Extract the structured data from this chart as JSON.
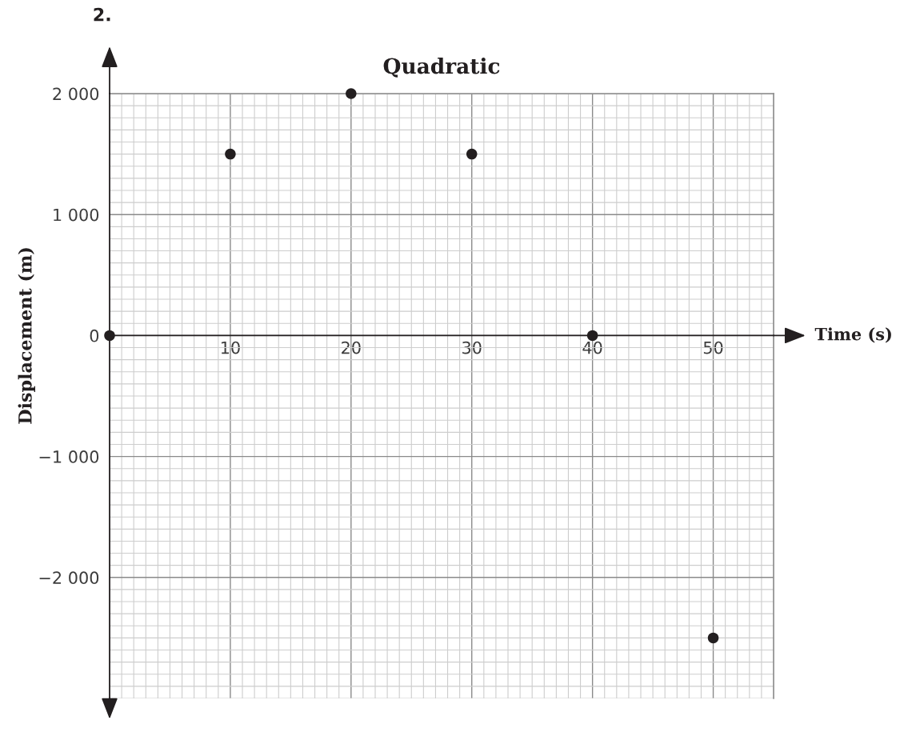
{
  "chart_data": {
    "type": "scatter",
    "title": "Quadratic",
    "xlabel": "Time (s)",
    "ylabel": "Displacement (m)",
    "annotations": [
      "2."
    ],
    "x": [
      0,
      10,
      20,
      30,
      40,
      50
    ],
    "values": [
      0,
      1500,
      2000,
      1500,
      0,
      -2500
    ],
    "color": "#231f20",
    "marker": "circle",
    "xlim": [
      0,
      55
    ],
    "ylim": [
      -3000,
      2000
    ],
    "xticks": [
      10,
      20,
      30,
      40,
      50
    ],
    "yticks": [
      {
        "value": -2000,
        "label": "−2 000"
      },
      {
        "value": -1000,
        "label": "−1 000"
      },
      0,
      {
        "value": 1000,
        "label": "1 000"
      },
      {
        "value": 2000,
        "label": "2 000"
      }
    ],
    "grid": true
  }
}
